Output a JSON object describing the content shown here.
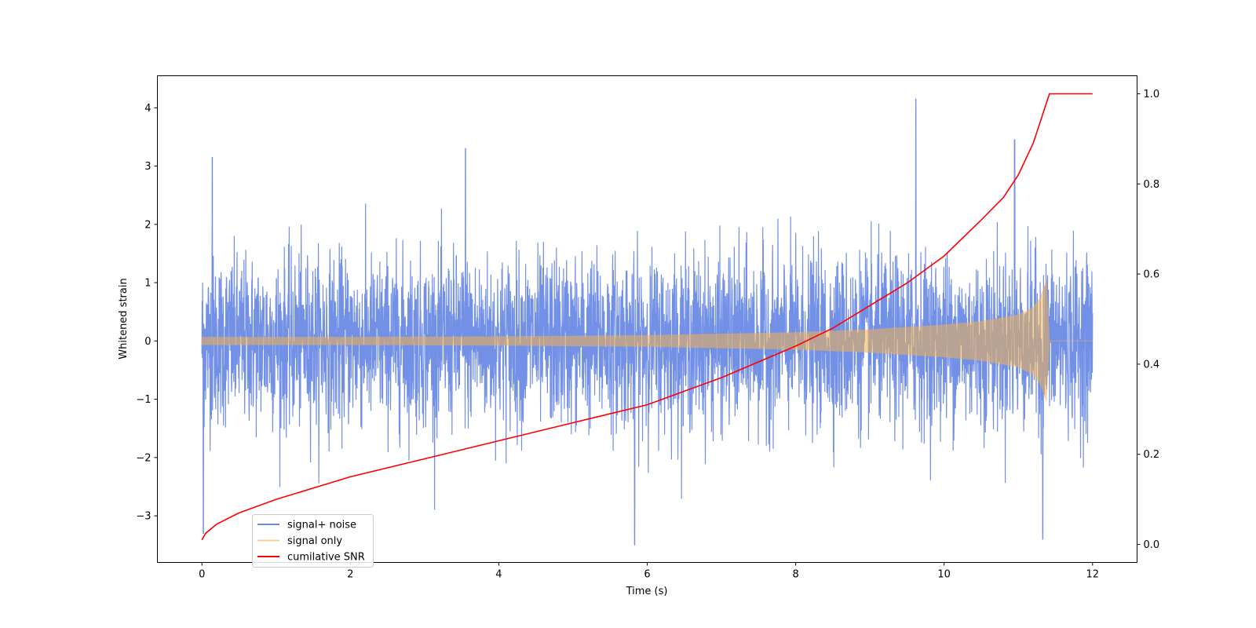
{
  "chart_data": {
    "type": "line",
    "title": "",
    "xlabel": "Time (s)",
    "ylabel": "Whitened strain",
    "y2label": "",
    "xlim": [
      -0.6,
      12.6
    ],
    "ylim": [
      -3.8,
      4.55
    ],
    "y2lim": [
      -0.04,
      1.04
    ],
    "xticks": [
      0,
      2,
      4,
      6,
      8,
      10,
      12
    ],
    "yticks": [
      -3,
      -2,
      -1,
      0,
      1,
      2,
      3,
      4
    ],
    "y2ticks": [
      0.0,
      0.2,
      0.4,
      0.6,
      0.8,
      1.0
    ],
    "xtick_labels": [
      "0",
      "2",
      "4",
      "6",
      "8",
      "10",
      "12"
    ],
    "ytick_labels": [
      "−3",
      "−2",
      "−1",
      "0",
      "1",
      "2",
      "3",
      "4"
    ],
    "y2tick_labels": [
      "0.0",
      "0.2",
      "0.4",
      "0.6",
      "0.8",
      "1.0"
    ],
    "grid": false,
    "legend_position": "lower-left",
    "series": [
      {
        "name": "signal+ noise",
        "color": "#6b8ae6",
        "axis": "left",
        "description_values": {
          "t_start": 0,
          "t_end": 12,
          "typical_range": [
            -2.0,
            2.5
          ],
          "peaks": [
            [
              0.14,
              3.15
            ],
            [
              3.55,
              3.3
            ],
            [
              9.62,
              4.15
            ],
            [
              10.95,
              3.45
            ],
            [
              5.83,
              -3.5
            ],
            [
              11.33,
              -3.4
            ],
            [
              0.02,
              -3.3
            ]
          ]
        }
      },
      {
        "name": "signal only",
        "color": "#f0b050",
        "axis": "left",
        "envelope": {
          "t": [
            0,
            2,
            4,
            6,
            8,
            9,
            10,
            10.5,
            11.0,
            11.2,
            11.3,
            11.38,
            11.42,
            12
          ],
          "amp": [
            0.07,
            0.07,
            0.08,
            0.1,
            0.15,
            0.2,
            0.28,
            0.34,
            0.45,
            0.58,
            0.75,
            1.05,
            0.0,
            0.0
          ]
        }
      },
      {
        "name": "cumilative SNR",
        "color": "#ff0000",
        "axis": "right",
        "x": [
          0,
          0.05,
          0.2,
          0.5,
          1,
          2,
          3,
          4,
          5,
          6,
          7,
          8,
          8.5,
          9,
          9.5,
          10,
          10.5,
          10.8,
          11.0,
          11.2,
          11.3,
          11.4,
          11.42,
          12
        ],
        "y": [
          0.01,
          0.025,
          0.045,
          0.07,
          0.1,
          0.15,
          0.19,
          0.23,
          0.27,
          0.31,
          0.37,
          0.44,
          0.48,
          0.53,
          0.58,
          0.64,
          0.72,
          0.77,
          0.82,
          0.89,
          0.94,
          0.99,
          1.0,
          1.0
        ]
      }
    ]
  }
}
